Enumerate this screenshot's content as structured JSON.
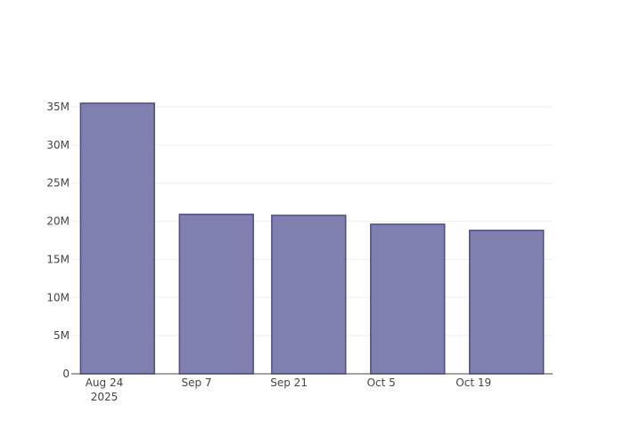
{
  "chart_data": {
    "type": "bar",
    "x": [
      "2025-08-26",
      "2025-09-10",
      "2025-09-24",
      "2025-10-09",
      "2025-10-24"
    ],
    "values": [
      35470000,
      20900000,
      20770000,
      19600000,
      18800000
    ],
    "color": "#7f7fb0",
    "line_color": "#4b4b8a",
    "xlim": [
      "2025-08-19",
      "2025-10-31"
    ],
    "xticks": [
      {
        "value": "2025-08-24",
        "label": "Aug 24\n2025"
      },
      {
        "value": "2025-09-07",
        "label": "Sep 7"
      },
      {
        "value": "2025-09-21",
        "label": "Sep 21"
      },
      {
        "value": "2025-10-05",
        "label": "Oct 5"
      },
      {
        "value": "2025-10-19",
        "label": "Oct 19"
      }
    ],
    "ylim": [
      0,
      35000000
    ],
    "yticks": [
      0,
      {
        "value": 5000000,
        "label": "5M"
      },
      {
        "value": 10000000,
        "label": "10M"
      },
      {
        "value": 15000000,
        "label": "15M"
      },
      {
        "value": 20000000,
        "label": "20M"
      },
      {
        "value": 25000000,
        "label": "25M"
      },
      {
        "value": 30000000,
        "label": "30M"
      },
      {
        "value": 35000000,
        "label": "35M"
      }
    ],
    "grid": true
  }
}
